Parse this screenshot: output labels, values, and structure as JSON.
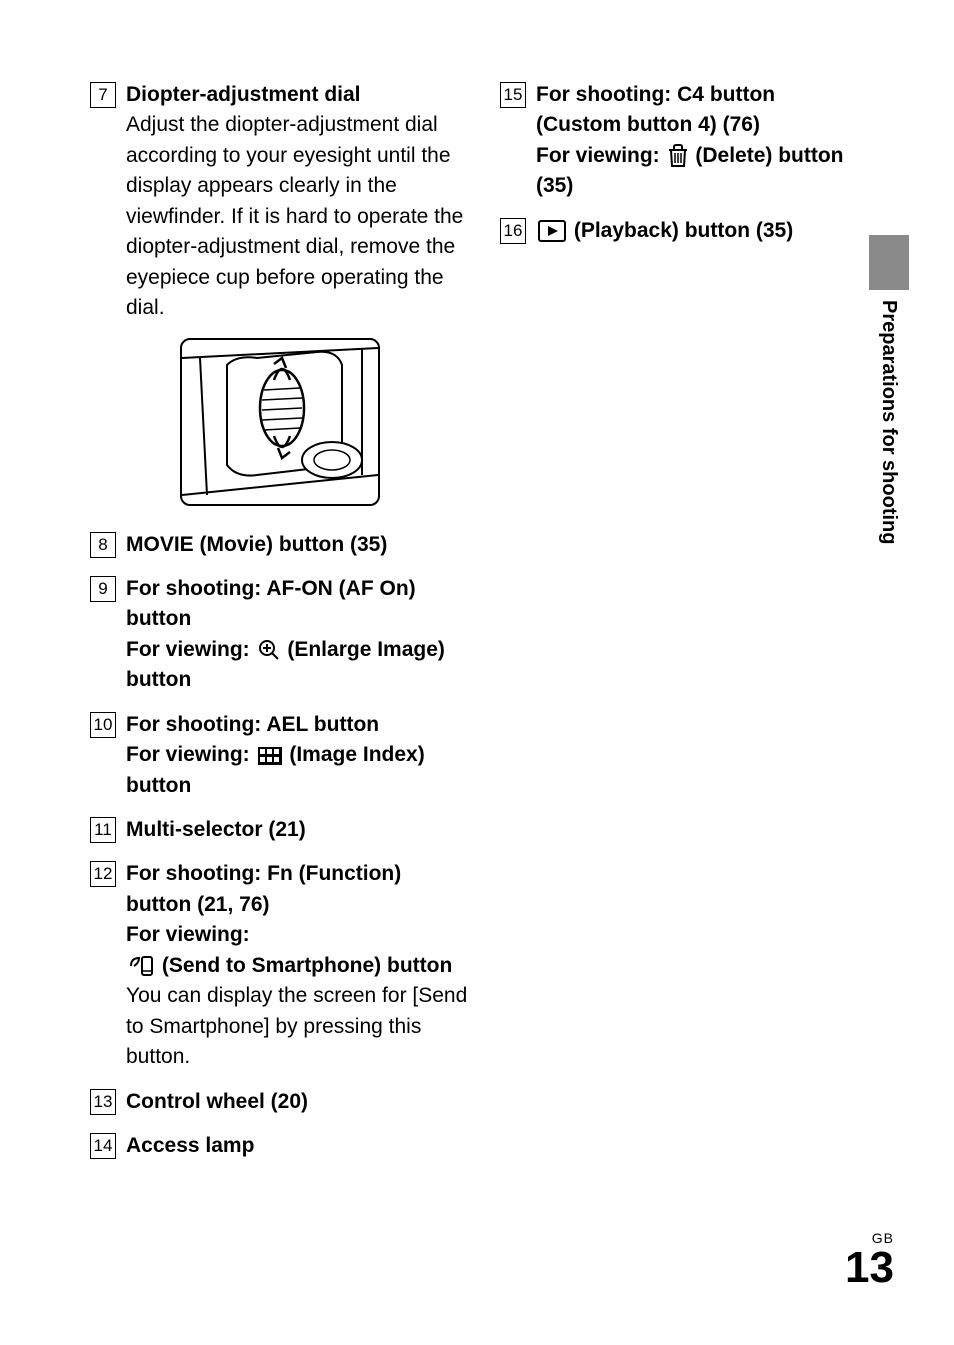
{
  "leftItems": [
    {
      "num": "7",
      "lines": [
        {
          "text": "Diopter-adjustment dial",
          "bold": true
        },
        {
          "text": "Adjust the diopter-adjustment dial according to your eyesight until the display appears clearly in the viewfinder. If it is hard to operate the diopter-adjustment dial, remove the eyepiece cup before operating the dial.",
          "bold": false
        }
      ],
      "diagram": true
    },
    {
      "num": "8",
      "lines": [
        {
          "text": "MOVIE (Movie) button (35)",
          "bold": true
        }
      ]
    },
    {
      "num": "9",
      "lines": [
        {
          "text": "For shooting: AF-ON (AF On) button",
          "bold": true
        },
        {
          "prefix": "For viewing: ",
          "icon": "enlarge",
          "suffix": " (Enlarge Image) button",
          "bold": true
        }
      ]
    },
    {
      "num": "10",
      "lines": [
        {
          "text": "For shooting: AEL button",
          "bold": true
        },
        {
          "prefix": "For viewing: ",
          "icon": "index",
          "suffix": " (Image Index) button",
          "bold": true
        }
      ]
    },
    {
      "num": "11",
      "lines": [
        {
          "text": "Multi-selector (21)",
          "bold": true
        }
      ]
    },
    {
      "num": "12",
      "lines": [
        {
          "text": "For shooting: Fn (Function) button (21, 76)",
          "bold": true
        },
        {
          "text": "For viewing: ",
          "bold": true
        },
        {
          "icon": "send",
          "suffix": " (Send to Smartphone) button",
          "bold": true
        },
        {
          "text": "You can display the screen for [Send to Smartphone] by pressing this button.",
          "bold": false
        }
      ]
    },
    {
      "num": "13",
      "lines": [
        {
          "text": "Control wheel (20)",
          "bold": true
        }
      ]
    },
    {
      "num": "14",
      "lines": [
        {
          "text": "Access lamp",
          "bold": true
        }
      ]
    }
  ],
  "rightItems": [
    {
      "num": "15",
      "lines": [
        {
          "text": "For shooting: C4 button (Custom button 4) (76)",
          "bold": true
        },
        {
          "prefix": "For viewing: ",
          "icon": "delete",
          "suffix": " (Delete) button (35)",
          "bold": true
        }
      ]
    },
    {
      "num": "16",
      "lines": [
        {
          "icon": "playback",
          "suffix": " (Playback) button (35)",
          "bold": true
        }
      ]
    }
  ],
  "sideTab": "Preparations for shooting",
  "footer": {
    "gb": "GB",
    "page": "13"
  },
  "icons": {
    "enlarge": "enlarge-icon",
    "index": "index-icon",
    "send": "send-icon",
    "delete": "delete-icon",
    "playback": "playback-icon"
  }
}
